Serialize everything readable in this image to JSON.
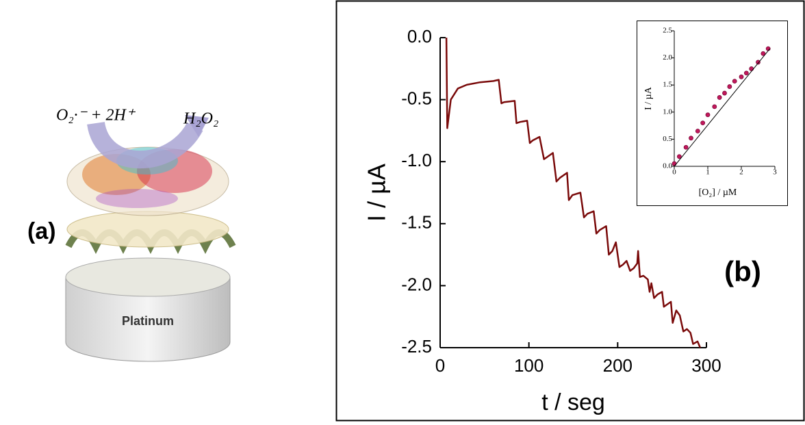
{
  "panel_a": {
    "label": "(a)",
    "reaction_left": "O₂·⁻ + 2H⁺",
    "reaction_right": "H₂O₂",
    "electrode": "Platinum"
  },
  "chart_data": [
    {
      "type": "line",
      "annotation": "(b)",
      "xlabel": "t / seg",
      "ylabel": "I / µA",
      "xlim": [
        0,
        300
      ],
      "ylim": [
        -2.5,
        0
      ],
      "xticks": [
        0,
        100,
        200,
        300
      ],
      "yticks": [
        {
          "value": 0,
          "label": "0.0"
        },
        -0.5,
        {
          "value": -1,
          "label": "-1.0"
        },
        -1.5,
        {
          "value": -2,
          "label": "-2.0"
        },
        -2.5
      ],
      "series": [
        {
          "color": "#7a0a0a",
          "x": [
            7,
            8,
            12,
            20,
            30,
            45,
            60,
            66,
            69,
            72,
            84,
            86,
            90,
            98,
            101,
            104,
            112,
            117,
            121,
            127,
            131,
            135,
            143,
            145,
            149,
            158,
            162,
            166,
            173,
            176,
            180,
            187,
            190,
            194,
            198,
            202,
            206,
            210,
            214,
            218,
            222,
            223,
            225,
            229,
            234,
            236,
            238,
            241,
            245,
            250,
            252,
            256,
            260,
            262,
            266,
            270,
            274,
            278,
            282,
            285,
            290,
            293
          ],
          "values": [
            0,
            -0.73,
            -0.5,
            -0.41,
            -0.38,
            -0.36,
            -0.35,
            -0.34,
            -0.53,
            -0.52,
            -0.51,
            -0.69,
            -0.68,
            -0.67,
            -0.85,
            -0.83,
            -0.8,
            -0.98,
            -0.96,
            -0.93,
            -1.16,
            -1.13,
            -1.09,
            -1.31,
            -1.27,
            -1.25,
            -1.45,
            -1.42,
            -1.4,
            -1.58,
            -1.55,
            -1.52,
            -1.75,
            -1.72,
            -1.65,
            -1.85,
            -1.83,
            -1.8,
            -1.88,
            -1.86,
            -1.82,
            -1.72,
            -1.93,
            -1.92,
            -1.95,
            -2.05,
            -1.98,
            -2.1,
            -2.07,
            -2.05,
            -2.17,
            -2.15,
            -2.13,
            -2.3,
            -2.2,
            -2.24,
            -2.37,
            -2.35,
            -2.38,
            -2.47,
            -2.45,
            -2.5
          ]
        }
      ]
    },
    {
      "type": "scatter",
      "xlabel": "[O₂] / µM",
      "ylabel": "I /  µA",
      "xlim": [
        0,
        3
      ],
      "ylim": [
        0,
        2.5
      ],
      "xticks": [
        0,
        1,
        2,
        3
      ],
      "yticks": [
        {
          "value": 0,
          "label": "0.0"
        },
        0.5,
        {
          "value": 1,
          "label": "1.0"
        },
        1.5,
        {
          "value": 2,
          "label": "2.0"
        },
        2.5
      ],
      "series": [
        {
          "color": "#c2185b",
          "style": "points",
          "x": [
            0,
            0.15,
            0.35,
            0.5,
            0.7,
            0.85,
            1.0,
            1.2,
            1.35,
            1.5,
            1.65,
            1.8,
            2.0,
            2.15,
            2.3,
            2.5,
            2.65,
            2.8
          ],
          "values": [
            0.05,
            0.18,
            0.35,
            0.52,
            0.65,
            0.8,
            0.95,
            1.1,
            1.27,
            1.35,
            1.47,
            1.57,
            1.65,
            1.72,
            1.8,
            1.92,
            2.08,
            2.17
          ]
        },
        {
          "color": "#000000",
          "style": "line",
          "x": [
            0,
            2.85
          ],
          "values": [
            0,
            2.17
          ]
        }
      ]
    }
  ]
}
